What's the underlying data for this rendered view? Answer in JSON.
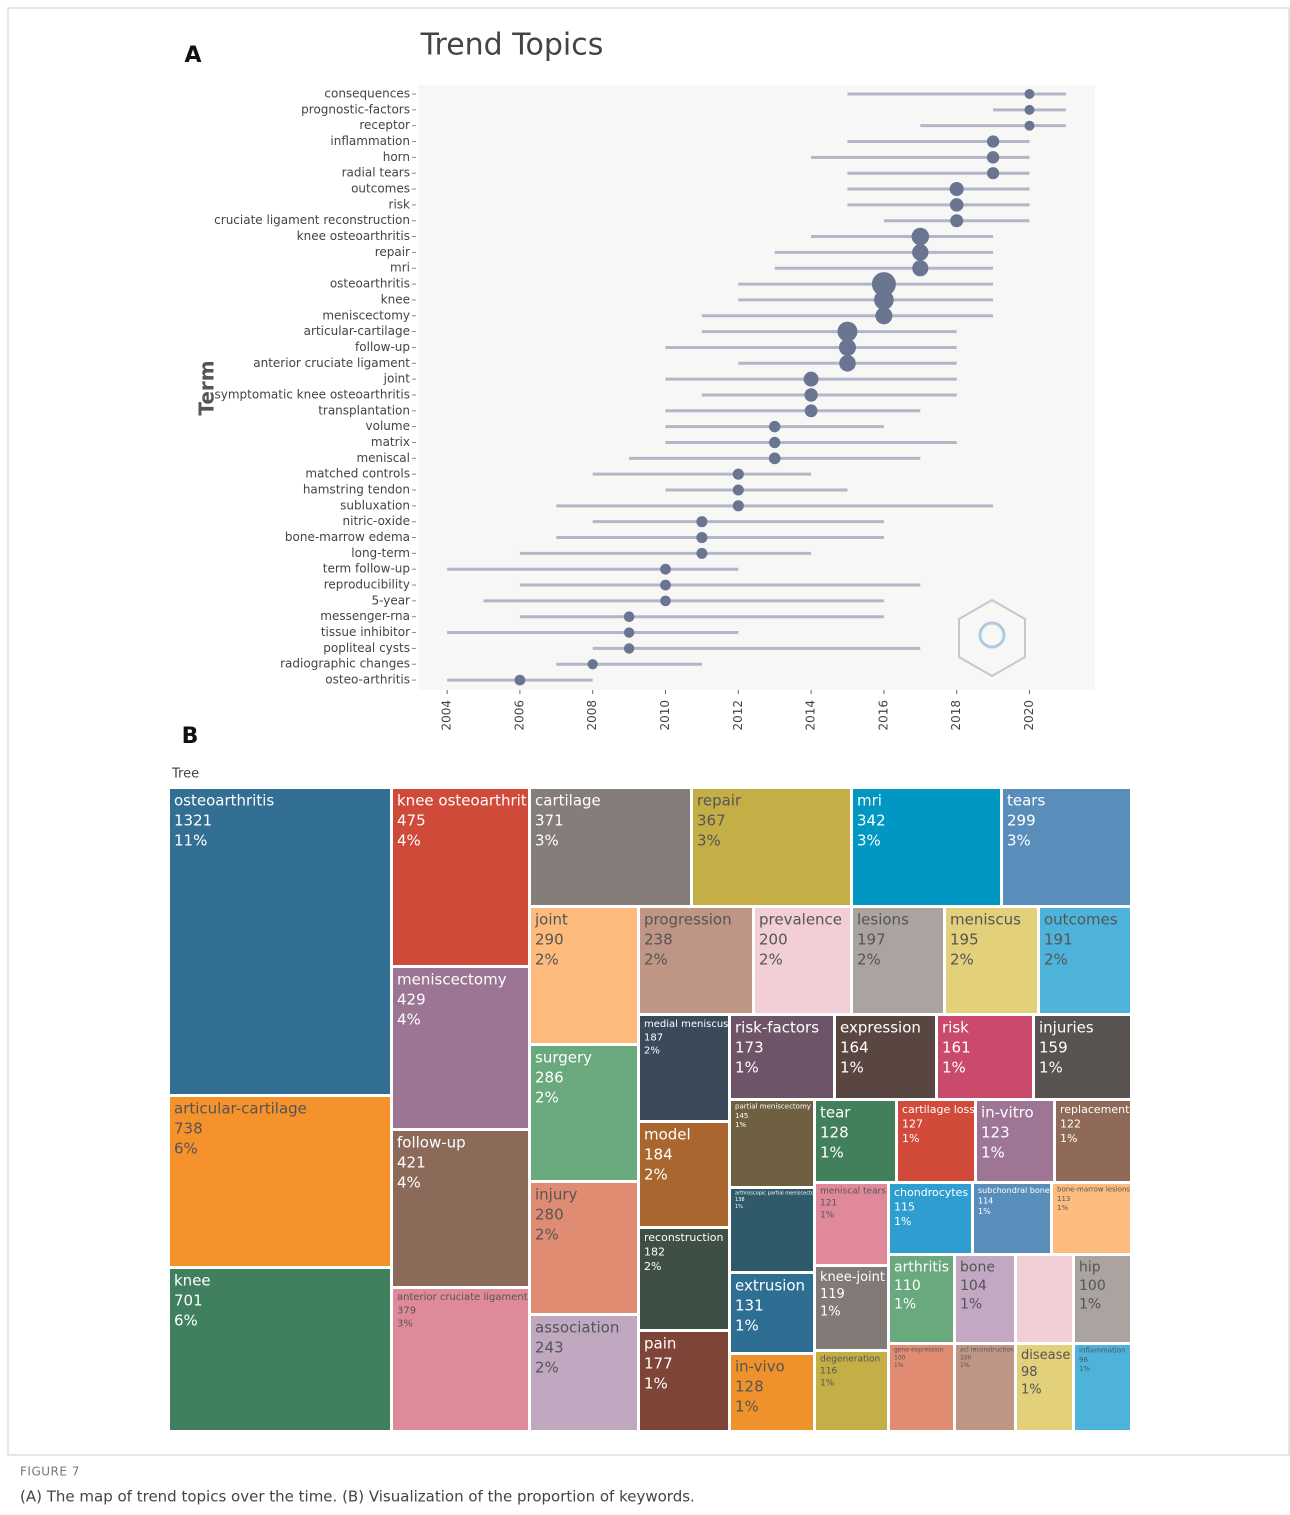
{
  "chart_data": [
    {
      "type": "range-dot",
      "panel": "A",
      "title": "Trend Topics",
      "y_label": "Term",
      "categories": [
        "consequences",
        "prognostic-factors",
        "receptor",
        "inflammation",
        "horn",
        "radial tears",
        "outcomes",
        "risk",
        "cruciate ligament reconstruction",
        "knee osteoarthritis",
        "repair",
        "mri",
        "osteoarthritis",
        "knee",
        "meniscectomy",
        "articular-cartilage",
        "follow-up",
        "anterior cruciate ligament",
        "joint",
        "symptomatic knee osteoarthritis",
        "transplantation",
        "volume",
        "matrix",
        "meniscal",
        "matched controls",
        "hamstring tendon",
        "subluxation",
        "nitric-oxide",
        "bone-marrow edema",
        "long-term",
        "term follow-up",
        "reproducibility",
        "5-year",
        "messenger-rna",
        "tissue inhibitor",
        "popliteal cysts",
        "radiographic changes",
        "osteo-arthritis"
      ],
      "median": [
        2020,
        2020,
        2020,
        2019,
        2019,
        2019,
        2018,
        2018,
        2018,
        2017,
        2017,
        2017,
        2016,
        2016,
        2016,
        2015,
        2015,
        2015,
        2014,
        2014,
        2014,
        2013,
        2013,
        2013,
        2012,
        2012,
        2012,
        2011,
        2011,
        2011,
        2010,
        2010,
        2010,
        2009,
        2009,
        2009,
        2008,
        2006
      ],
      "q1": [
        2015,
        2019,
        2017,
        2015,
        2014,
        2015,
        2015,
        2015,
        2016,
        2014,
        2013,
        2013,
        2012,
        2012,
        2011,
        2011,
        2010,
        2012,
        2010,
        2011,
        2010,
        2010,
        2010,
        2009,
        2008,
        2010,
        2007,
        2008,
        2007,
        2006,
        2004,
        2006,
        2005,
        2006,
        2004,
        2008,
        2007,
        2004
      ],
      "q3": [
        2021,
        2021,
        2021,
        2020,
        2020,
        2020,
        2020,
        2020,
        2020,
        2019,
        2019,
        2019,
        2019,
        2019,
        2019,
        2018,
        2018,
        2018,
        2018,
        2018,
        2017,
        2016,
        2018,
        2017,
        2014,
        2015,
        2019,
        2016,
        2016,
        2014,
        2012,
        2017,
        2016,
        2016,
        2012,
        2017,
        2011,
        2008
      ],
      "frequency": [
        20,
        20,
        20,
        96,
        100,
        90,
        191,
        161,
        130,
        475,
        367,
        342,
        1321,
        701,
        429,
        738,
        421,
        379,
        250,
        150,
        120,
        60,
        60,
        70,
        50,
        50,
        50,
        50,
        50,
        45,
        40,
        40,
        35,
        35,
        30,
        30,
        25,
        40
      ],
      "color": "#6a7591",
      "range_color": "#b3b6c8",
      "xlim": [
        2003.2,
        2021.8
      ],
      "xticks": [
        2004,
        2006,
        2008,
        2010,
        2012,
        2014,
        2016,
        2018,
        2020
      ]
    },
    {
      "type": "treemap",
      "panel": "B",
      "title": "Tree",
      "tiles": [
        {
          "name": "osteoarthritis",
          "value": 1321,
          "share": 11,
          "share_label": "11%",
          "color": "#326f93"
        },
        {
          "name": "articular-cartilage",
          "value": 738,
          "share": 6,
          "share_label": "6%",
          "color": "#f5922b"
        },
        {
          "name": "knee",
          "value": 701,
          "share": 6,
          "share_label": "6%",
          "color": "#40805f"
        },
        {
          "name": "knee osteoarthritis",
          "value": 475,
          "share": 4,
          "share_label": "4%",
          "color": "#d04a3a"
        },
        {
          "name": "meniscectomy",
          "value": 429,
          "share": 4,
          "share_label": "4%",
          "color": "#9b7593"
        },
        {
          "name": "follow-up",
          "value": 421,
          "share": 4,
          "share_label": "4%",
          "color": "#8b6a5a"
        },
        {
          "name": "anterior cruciate ligament",
          "value": 379,
          "share": 3,
          "share_label": "3%",
          "color": "#df8a99"
        },
        {
          "name": "cartilage",
          "value": 371,
          "share": 3,
          "share_label": "3%",
          "color": "#857d79"
        },
        {
          "name": "repair",
          "value": 367,
          "share": 3,
          "share_label": "3%",
          "color": "#c4ae46"
        },
        {
          "name": "mri",
          "value": 342,
          "share": 3,
          "share_label": "3%",
          "color": "#0097c2"
        },
        {
          "name": "tears",
          "value": 299,
          "share": 3,
          "share_label": "3%",
          "color": "#5a8eba"
        },
        {
          "name": "joint",
          "value": 290,
          "share": 2,
          "share_label": "2%",
          "color": "#fdbc7e"
        },
        {
          "name": "surgery",
          "value": 286,
          "share": 2,
          "share_label": "2%",
          "color": "#6aa87d"
        },
        {
          "name": "injury",
          "value": 280,
          "share": 2,
          "share_label": "2%",
          "color": "#e08c72"
        },
        {
          "name": "association",
          "value": 243,
          "share": 2,
          "share_label": "2%",
          "color": "#c0a8c0"
        },
        {
          "name": "progression",
          "value": 238,
          "share": 2,
          "share_label": "2%",
          "color": "#bf9585"
        },
        {
          "name": "prevalence",
          "value": 200,
          "share": 2,
          "share_label": "2%",
          "color": "#f2cfd6"
        },
        {
          "name": "lesions",
          "value": 197,
          "share": 2,
          "share_label": "2%",
          "color": "#aaa3a0"
        },
        {
          "name": "meniscus",
          "value": 195,
          "share": 2,
          "share_label": "2%",
          "color": "#e2d07a"
        },
        {
          "name": "outcomes",
          "value": 191,
          "share": 2,
          "share_label": "2%",
          "color": "#4eb3da"
        },
        {
          "name": "medial meniscus",
          "value": 187,
          "share": 2,
          "share_label": "2%",
          "color": "#3a4a5a"
        },
        {
          "name": "model",
          "value": 184,
          "share": 2,
          "share_label": "2%",
          "color": "#a9672f"
        },
        {
          "name": "reconstruction",
          "value": 182,
          "share": 2,
          "share_label": "2%",
          "color": "#3e4f44"
        },
        {
          "name": "pain",
          "value": 177,
          "share": 1,
          "share_label": "1%",
          "color": "#7e4438"
        },
        {
          "name": "risk-factors",
          "value": 173,
          "share": 1,
          "share_label": "1%",
          "color": "#6e5468"
        },
        {
          "name": "expression",
          "value": 164,
          "share": 1,
          "share_label": "1%",
          "color": "#5a4640"
        },
        {
          "name": "risk",
          "value": 161,
          "share": 1,
          "share_label": "1%",
          "color": "#c94a6a"
        },
        {
          "name": "injuries",
          "value": 159,
          "share": 1,
          "share_label": "1%",
          "color": "#585250"
        },
        {
          "name": "partial meniscectomy",
          "value": 145,
          "share": 1,
          "share_label": "1%",
          "color": "#6e6040"
        },
        {
          "name": "tear",
          "value": 128,
          "share": 1,
          "share_label": "1%",
          "color": "#42805c"
        },
        {
          "name": "cartilage loss",
          "value": 127,
          "share": 1,
          "share_label": "1%",
          "color": "#d24a3a"
        },
        {
          "name": "in-vitro",
          "value": 123,
          "share": 1,
          "share_label": "1%",
          "color": "#9e7595"
        },
        {
          "name": "replacement",
          "value": 122,
          "share": 1,
          "share_label": "1%",
          "color": "#8f6a58"
        },
        {
          "name": "arthroscopic partial meniscectomy",
          "value": 138,
          "share": 1,
          "share_label": "1%",
          "color": "#2e5a6a"
        },
        {
          "name": "meniscal tears",
          "value": 121,
          "share": 1,
          "share_label": "1%",
          "color": "#e0899a"
        },
        {
          "name": "chondrocytes",
          "value": 115,
          "share": 1,
          "share_label": "1%",
          "color": "#2e9ed0"
        },
        {
          "name": "subchondral bone",
          "value": 114,
          "share": 1,
          "share_label": "1%",
          "color": "#5a8eba"
        },
        {
          "name": "bone-marrow lesions",
          "value": 113,
          "share": 1,
          "share_label": "1%",
          "color": "#fdbc7e"
        },
        {
          "name": "extrusion",
          "value": 131,
          "share": 1,
          "share_label": "1%",
          "color": "#2e6e93"
        },
        {
          "name": "in-vivo",
          "value": 128,
          "share": 1,
          "share_label": "1%",
          "color": "#f0922b"
        },
        {
          "name": "knee-joint",
          "value": 119,
          "share": 1,
          "share_label": "1%",
          "color": "#817a76"
        },
        {
          "name": "degeneration",
          "value": 116,
          "share": 1,
          "share_label": "1%",
          "color": "#c4ae46"
        },
        {
          "name": "arthritis",
          "value": 110,
          "share": 1,
          "share_label": "1%",
          "color": "#6aa87d"
        },
        {
          "name": "bone",
          "value": 104,
          "share": 1,
          "share_label": "1%",
          "color": "#c3a8c3"
        },
        {
          "name": "hip",
          "value": 100,
          "share": 1,
          "share_label": "1%",
          "color": "#aaa3a0"
        },
        {
          "name": "gene-expression",
          "value": 100,
          "share": 1,
          "share_label": "1%",
          "color": "#e08c72"
        },
        {
          "name": "acl reconstruction",
          "value": 100,
          "share": 1,
          "share_label": "1%",
          "color": "#bf9585"
        },
        {
          "name": "disease",
          "value": 98,
          "share": 1,
          "share_label": "1%",
          "color": "#e2d07a"
        },
        {
          "name": "inflammation",
          "value": 96,
          "share": 1,
          "share_label": "1%",
          "color": "#4eb3da"
        }
      ]
    }
  ],
  "figure_label": "FIGURE 7",
  "caption": "(A) The map of trend topics over the time. (B) Visualization of the proportion of keywords."
}
